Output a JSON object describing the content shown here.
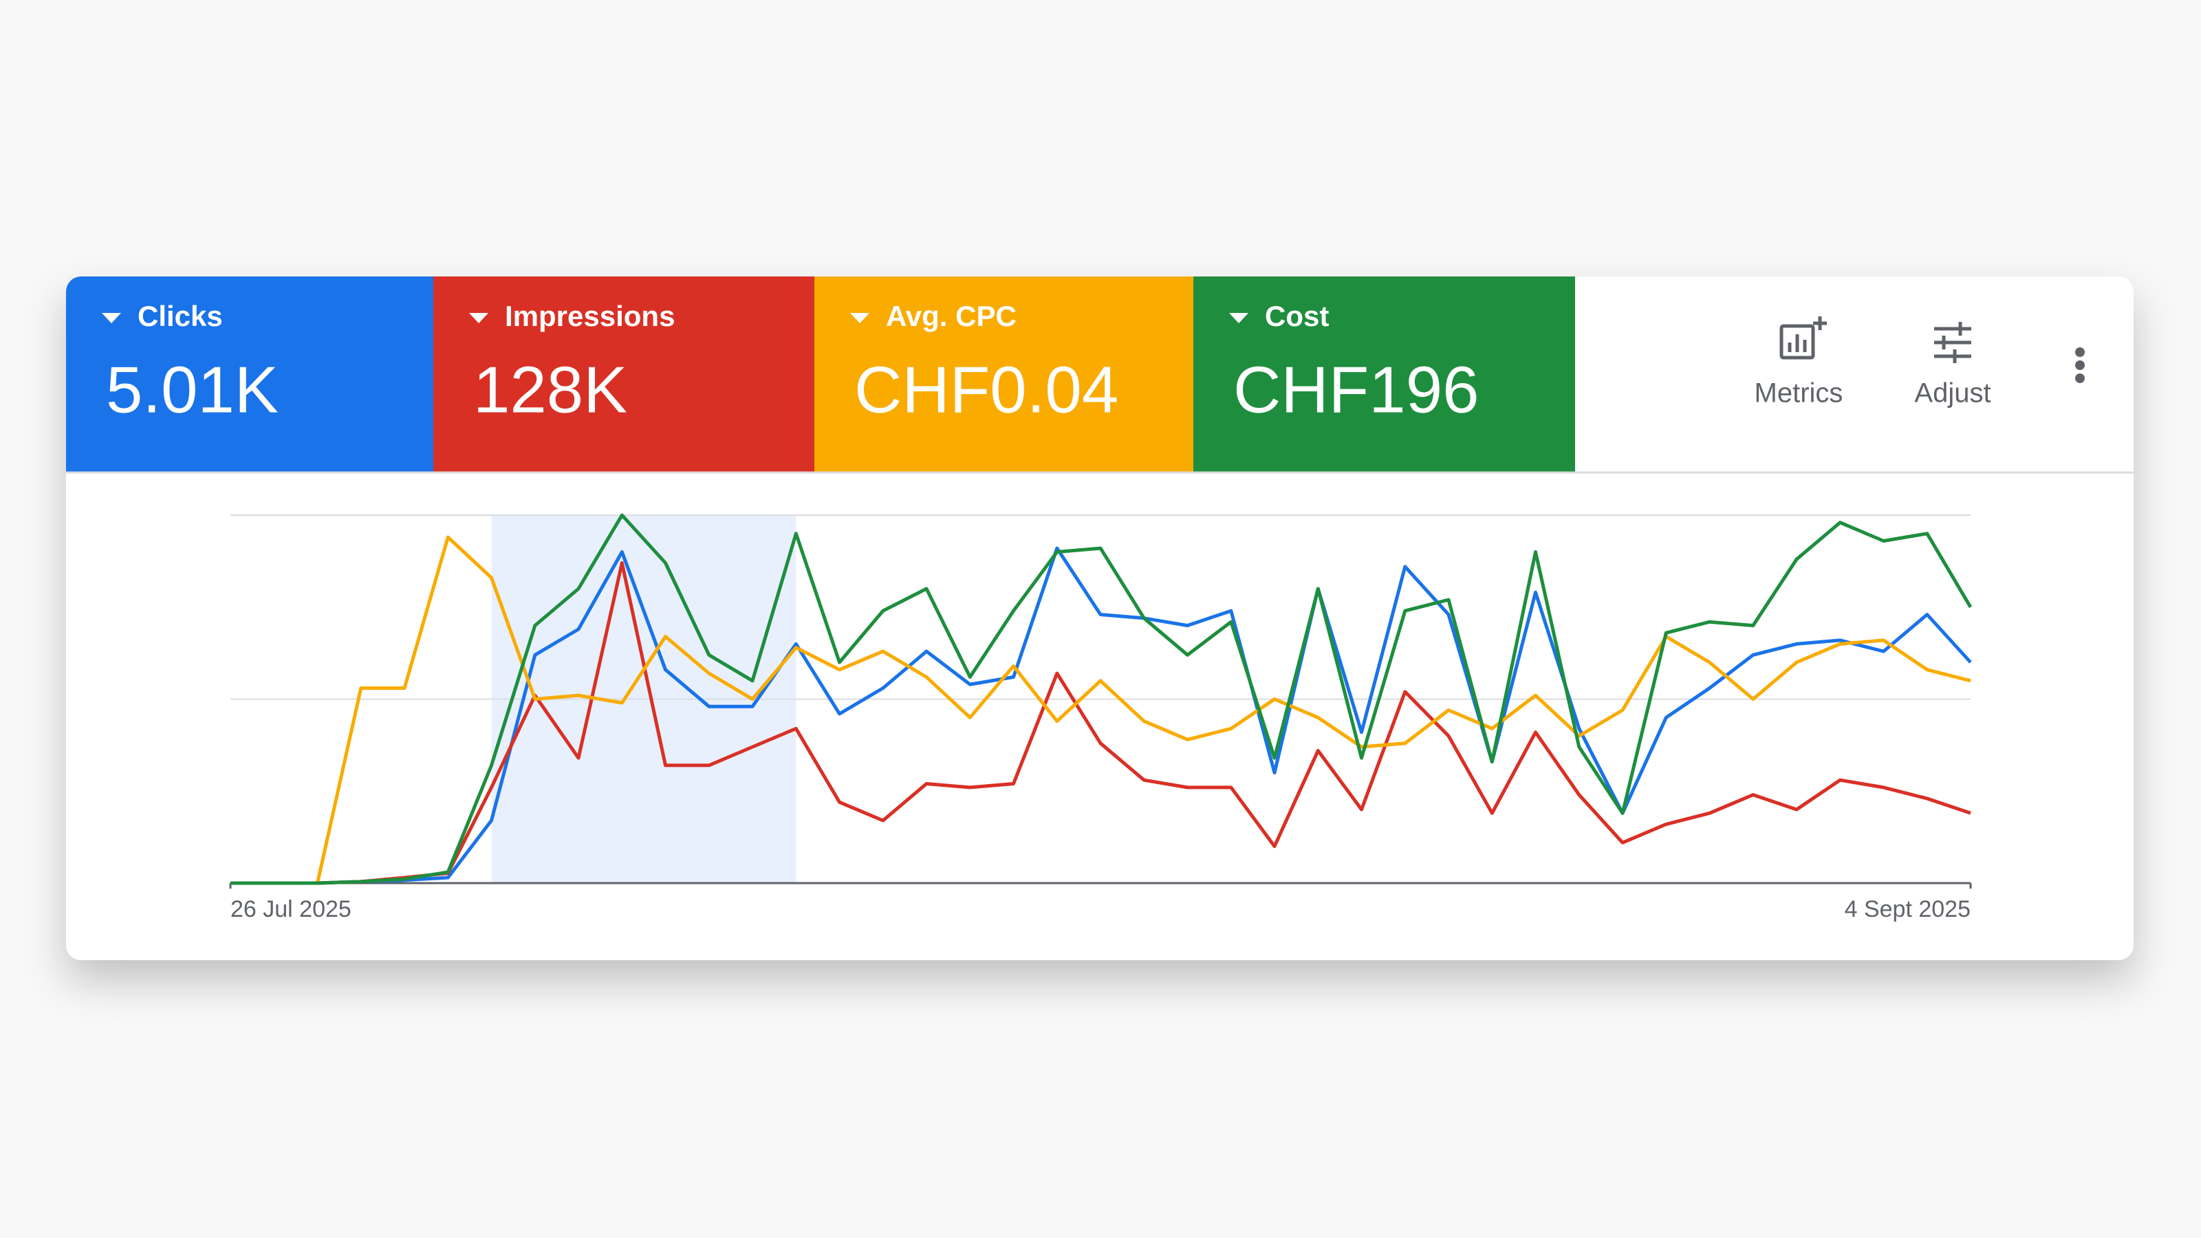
{
  "chart_data": {
    "type": "line",
    "categories": [
      "26 Jul 2025",
      null,
      null,
      null,
      null,
      null,
      null,
      null,
      null,
      null,
      null,
      null,
      null,
      null,
      null,
      null,
      null,
      null,
      null,
      null,
      null,
      null,
      null,
      null,
      null,
      null,
      null,
      null,
      null,
      null,
      null,
      null,
      null,
      null,
      null,
      null,
      null,
      null,
      null,
      null,
      "4 Sept 2025"
    ],
    "highlight_range": [
      6,
      13
    ],
    "ylim": [
      0,
      100
    ],
    "yticks": [
      0,
      50,
      100
    ],
    "grid": true,
    "series": [
      {
        "name": "Clicks",
        "total": "5.01K",
        "color": "#1a73e8",
        "values": [
          0,
          0,
          0,
          0.4,
          0.8,
          1.5,
          17,
          62,
          69,
          90,
          58,
          48,
          48,
          65,
          46,
          53,
          63,
          54,
          56,
          91,
          73,
          72,
          70,
          74,
          30,
          80,
          41,
          86,
          73,
          33,
          79,
          42,
          19,
          45,
          53,
          62,
          65,
          66,
          63,
          73,
          60
        ]
      },
      {
        "name": "Impressions",
        "total": "128K",
        "color": "#d93025",
        "values": [
          0,
          0,
          0,
          0.4,
          1.5,
          2.7,
          26,
          51,
          34,
          87,
          32,
          32,
          37,
          42,
          22,
          17,
          27,
          26,
          27,
          57,
          38,
          28,
          26,
          26,
          10,
          36,
          20,
          52,
          40,
          19,
          41,
          24,
          11,
          16,
          19,
          24,
          20,
          28,
          26,
          23,
          19
        ]
      },
      {
        "name": "Avg. CPC",
        "total": "CHF0.04",
        "color": "#f9ab00",
        "values": [
          0,
          0,
          0,
          53,
          53,
          94,
          83,
          50,
          51,
          49,
          67,
          57,
          50,
          64,
          58,
          63,
          56,
          45,
          59,
          44,
          55,
          44,
          39,
          42,
          50,
          45,
          37,
          38,
          47,
          42,
          51,
          40,
          47,
          67,
          60,
          50,
          60,
          65,
          66,
          58,
          55
        ]
      },
      {
        "name": "Cost",
        "total": "CHF196",
        "color": "#1e8e3e",
        "values": [
          0,
          0,
          0,
          0.4,
          1.1,
          3,
          32,
          70,
          80,
          100,
          87,
          62,
          55,
          95,
          60,
          74,
          80,
          56,
          74,
          90,
          91,
          72,
          62,
          71,
          34,
          80,
          34,
          74,
          77,
          33,
          90,
          37,
          19,
          68,
          71,
          70,
          88,
          98,
          93,
          95,
          75
        ]
      }
    ]
  },
  "actions": [
    "Metrics",
    "Adjust"
  ]
}
